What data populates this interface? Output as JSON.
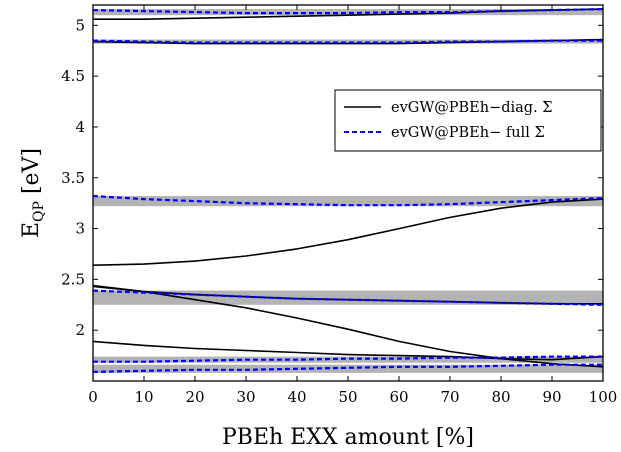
{
  "chart_data": {
    "type": "line",
    "title": "",
    "xlabel": "PBEh EXX amount [%]",
    "ylabel_main": "E",
    "ylabel_sub": "QP",
    "ylabel_unit": " [eV]",
    "xlim": [
      0,
      100
    ],
    "ylim": [
      1.5,
      5.2
    ],
    "x_ticks": [
      0,
      10,
      20,
      30,
      40,
      50,
      60,
      70,
      80,
      90,
      100
    ],
    "y_ticks": [
      2,
      2.5,
      3,
      3.5,
      4,
      4.5,
      5
    ],
    "x_tick_labels": [
      "0",
      "10",
      "20",
      "30",
      "40",
      "50",
      "60",
      "70",
      "80",
      "90",
      "100"
    ],
    "y_tick_labels": [
      "2",
      "2.5",
      "3",
      "3.5",
      "4",
      "4.5",
      "5"
    ],
    "grid": false,
    "legend_position": "upper-right",
    "bands": [
      {
        "y0": 1.58,
        "y1": 1.66
      },
      {
        "y0": 1.68,
        "y1": 1.74
      },
      {
        "y0": 2.25,
        "y1": 2.39
      },
      {
        "y0": 3.22,
        "y1": 3.32
      },
      {
        "y0": 4.82,
        "y1": 4.86
      },
      {
        "y0": 5.1,
        "y1": 5.16
      }
    ],
    "x": [
      0,
      10,
      20,
      30,
      40,
      50,
      60,
      70,
      80,
      90,
      100
    ],
    "series": [
      {
        "name": "evGW@PBEh−diag. Σ",
        "color": "#000000",
        "dash": "solid",
        "lines": [
          [
            1.89,
            1.85,
            1.82,
            1.8,
            1.78,
            1.76,
            1.75,
            1.74,
            1.72,
            1.67,
            1.64
          ],
          [
            2.43,
            2.38,
            2.3,
            2.22,
            2.12,
            2.01,
            1.89,
            1.79,
            1.72,
            1.71,
            1.74
          ],
          [
            2.44,
            2.38,
            2.35,
            2.33,
            2.31,
            2.3,
            2.29,
            2.28,
            2.27,
            2.26,
            2.26
          ],
          [
            2.64,
            2.65,
            2.68,
            2.73,
            2.8,
            2.89,
            3.0,
            3.11,
            3.2,
            3.26,
            3.29
          ],
          [
            4.84,
            4.83,
            4.82,
            4.82,
            4.82,
            4.82,
            4.82,
            4.83,
            4.84,
            4.85,
            4.86
          ],
          [
            5.06,
            5.06,
            5.07,
            5.08,
            5.09,
            5.1,
            5.11,
            5.12,
            5.14,
            5.15,
            5.16
          ]
        ]
      },
      {
        "name": "evGW@PBEh− full Σ",
        "color": "#0000ff",
        "dash": "dashed",
        "lines": [
          [
            1.59,
            1.6,
            1.61,
            1.61,
            1.62,
            1.63,
            1.64,
            1.64,
            1.65,
            1.66,
            1.66
          ],
          [
            1.69,
            1.69,
            1.7,
            1.71,
            1.71,
            1.72,
            1.72,
            1.73,
            1.73,
            1.74,
            1.74
          ],
          [
            2.39,
            2.37,
            2.35,
            2.33,
            2.31,
            2.3,
            2.29,
            2.28,
            2.27,
            2.26,
            2.25
          ],
          [
            3.32,
            3.29,
            3.27,
            3.25,
            3.24,
            3.23,
            3.23,
            3.24,
            3.26,
            3.28,
            3.3
          ],
          [
            4.85,
            4.84,
            4.83,
            4.83,
            4.83,
            4.83,
            4.83,
            4.84,
            4.84,
            4.85,
            4.85
          ],
          [
            5.15,
            5.14,
            5.13,
            5.12,
            5.12,
            5.12,
            5.13,
            5.13,
            5.14,
            5.15,
            5.16
          ]
        ]
      }
    ]
  }
}
